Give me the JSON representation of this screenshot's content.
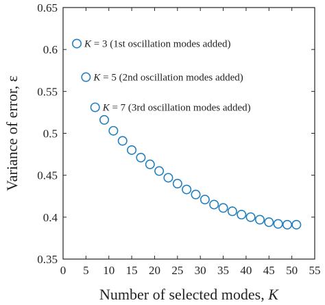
{
  "chart_data": {
    "type": "scatter",
    "xlabel_text": "Number of selected modes, ",
    "xlabel_var": "K",
    "ylabel": "Variance of error, ε",
    "xlim": [
      0,
      55
    ],
    "ylim": [
      0.35,
      0.65
    ],
    "xticks": [
      "0",
      "5",
      "10",
      "15",
      "20",
      "25",
      "30",
      "35",
      "40",
      "45",
      "50",
      "55"
    ],
    "yticks": [
      "0.35",
      "0.4",
      "0.45",
      "0.5",
      "0.55",
      "0.6",
      "0.65"
    ],
    "grid": false,
    "marker_color": "#1f7fbf",
    "series": [
      {
        "x": [
          3,
          5,
          7,
          9,
          11,
          13,
          15,
          17,
          19,
          21,
          23,
          25,
          27,
          29,
          31,
          33,
          35,
          37,
          39,
          41,
          43,
          45,
          47,
          49,
          51
        ],
        "y": [
          0.607,
          0.567,
          0.531,
          0.516,
          0.503,
          0.491,
          0.48,
          0.471,
          0.463,
          0.455,
          0.447,
          0.44,
          0.433,
          0.427,
          0.421,
          0.415,
          0.411,
          0.407,
          0.403,
          0.4,
          0.397,
          0.394,
          0.392,
          0.391,
          0.391
        ]
      }
    ],
    "annotations": [
      {
        "var": "K",
        "text": " = 3 (1st oscillation modes added)",
        "x": 3,
        "y": 0.607
      },
      {
        "var": "K",
        "text": " = 5 (2nd oscillation modes added)",
        "x": 5,
        "y": 0.567
      },
      {
        "var": "K",
        "text": " = 7 (3rd oscillation modes added)",
        "x": 7,
        "y": 0.531
      }
    ]
  }
}
